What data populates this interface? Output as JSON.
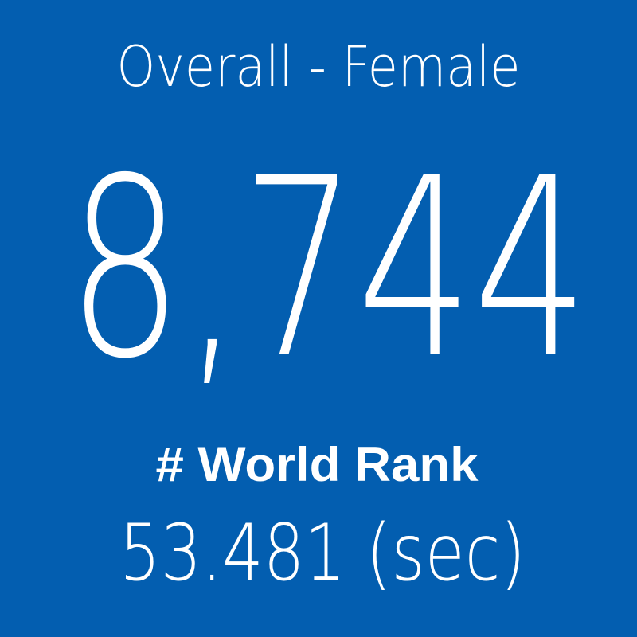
{
  "tile": {
    "title": "Overall - Female",
    "rank": "8,744",
    "rank_label": "# World Rank",
    "time": "53.481 (sec)"
  }
}
